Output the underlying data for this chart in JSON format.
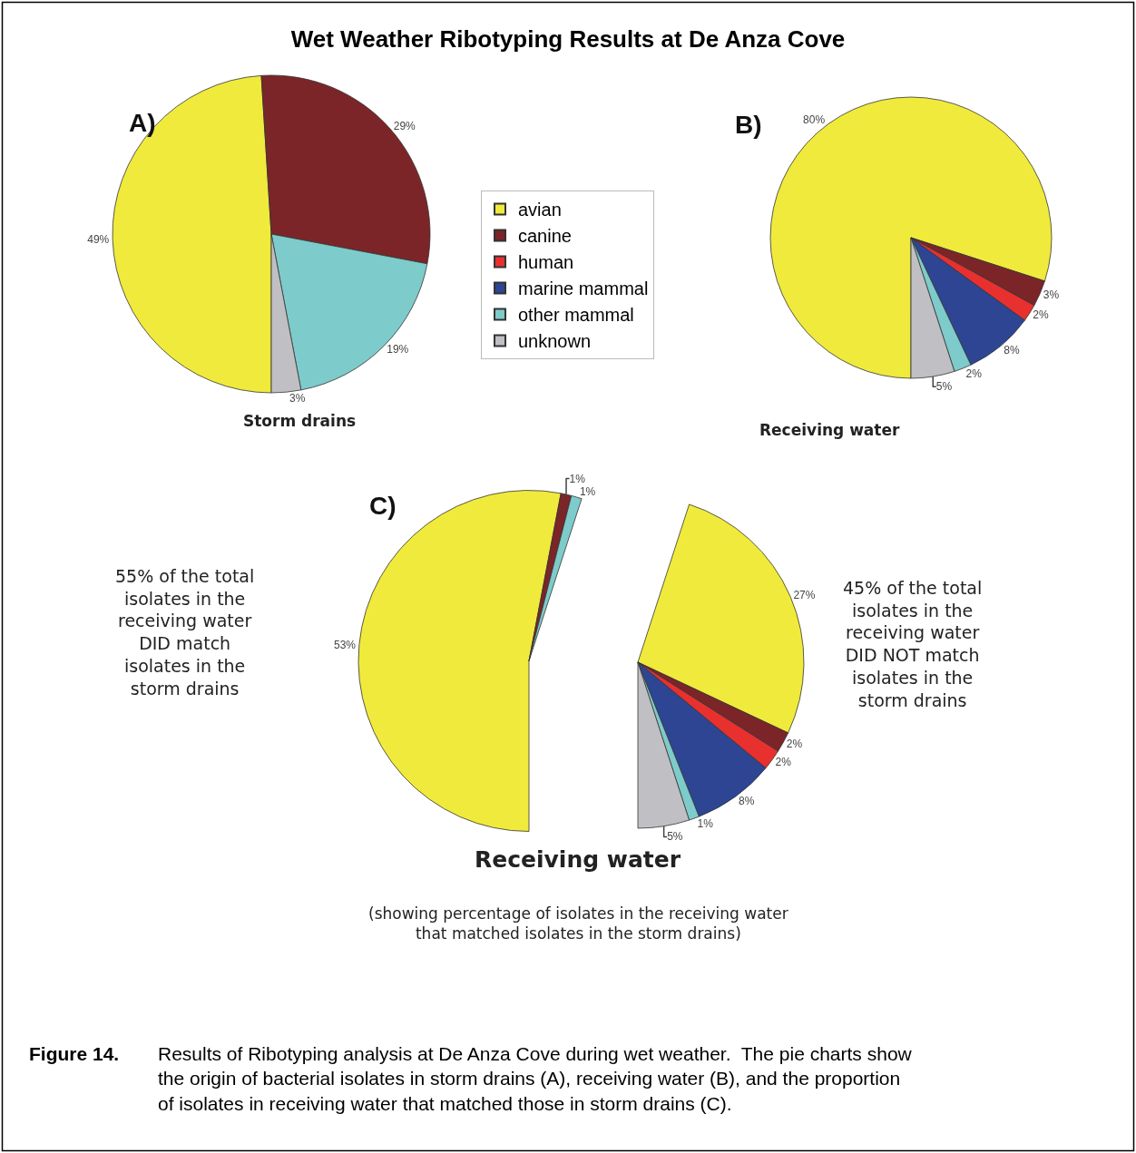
{
  "chart_data": [
    {
      "type": "pie",
      "title": "Wet Weather Ribotyping Results at De Anza Cove",
      "subtitle": "A)",
      "xlabel": "Storm drains",
      "categories": [
        null,
        null,
        null,
        null
      ],
      "values": [
        49,
        29,
        19,
        3
      ],
      "colors": [
        "#f0ea3c",
        "#7b2528",
        "#7ecbcb",
        "#c0c0c4"
      ],
      "value_labels": [
        "49%",
        "29%",
        "19%",
        "3%"
      ],
      "annotations": [
        "Figure 14.",
        "Results of Ribotyping analysis at De Anza Cove during wet weather.  The pie charts show\nthe origin of bacterial isolates in storm drains (A), receiving water (B), and the proportion\nof isolates in receiving water that matched those in storm drains (C)."
      ]
    },
    {
      "type": "pie",
      "subtitle": "B)",
      "xlabel": "Receiving water",
      "legend": "left",
      "categories": [
        "avian",
        "canine",
        "human",
        "marine mammal",
        "other mammal",
        "unknown"
      ],
      "values": [
        80,
        3,
        2,
        8,
        2,
        5
      ],
      "colors": [
        "#f0ea3c",
        "#7b2528",
        "#e8302e",
        "#2e4593",
        "#7ecbcb",
        "#c0c0c4"
      ],
      "value_labels": [
        "80%",
        "3%",
        "2%",
        "8%",
        "2%",
        "5%"
      ]
    },
    {
      "type": "pie",
      "subtitle": "C)",
      "xlabel": "Receiving water",
      "categories": [
        null,
        null,
        null
      ],
      "values": [
        53,
        1,
        1
      ],
      "colors": [
        "#f0ea3c",
        "#7b2528",
        "#7ecbcb"
      ],
      "value_labels": [
        "53%",
        "1%",
        "1%"
      ],
      "annotations": [
        "(showing percentage of isolates in the receiving water\nthat matched isolates in the storm drains)",
        "55% of the total\nisolates in the\nreceiving water\nDID match\nisolates in the\nstorm drains"
      ]
    },
    {
      "type": "pie",
      "categories": [
        null,
        null,
        null,
        null,
        null,
        null
      ],
      "values": [
        27,
        2,
        2,
        8,
        1,
        5
      ],
      "colors": [
        "#f0ea3c",
        "#7b2528",
        "#e8302e",
        "#2e4593",
        "#7ecbcb",
        "#c0c0c4"
      ],
      "value_labels": [
        "27%",
        "2%",
        "2%",
        "8%",
        "1%",
        "5%"
      ],
      "annotations": [
        "45% of the total\nisolates in the\nreceiving water\nDID NOT match\nisolates in the\nstorm drains"
      ]
    }
  ]
}
